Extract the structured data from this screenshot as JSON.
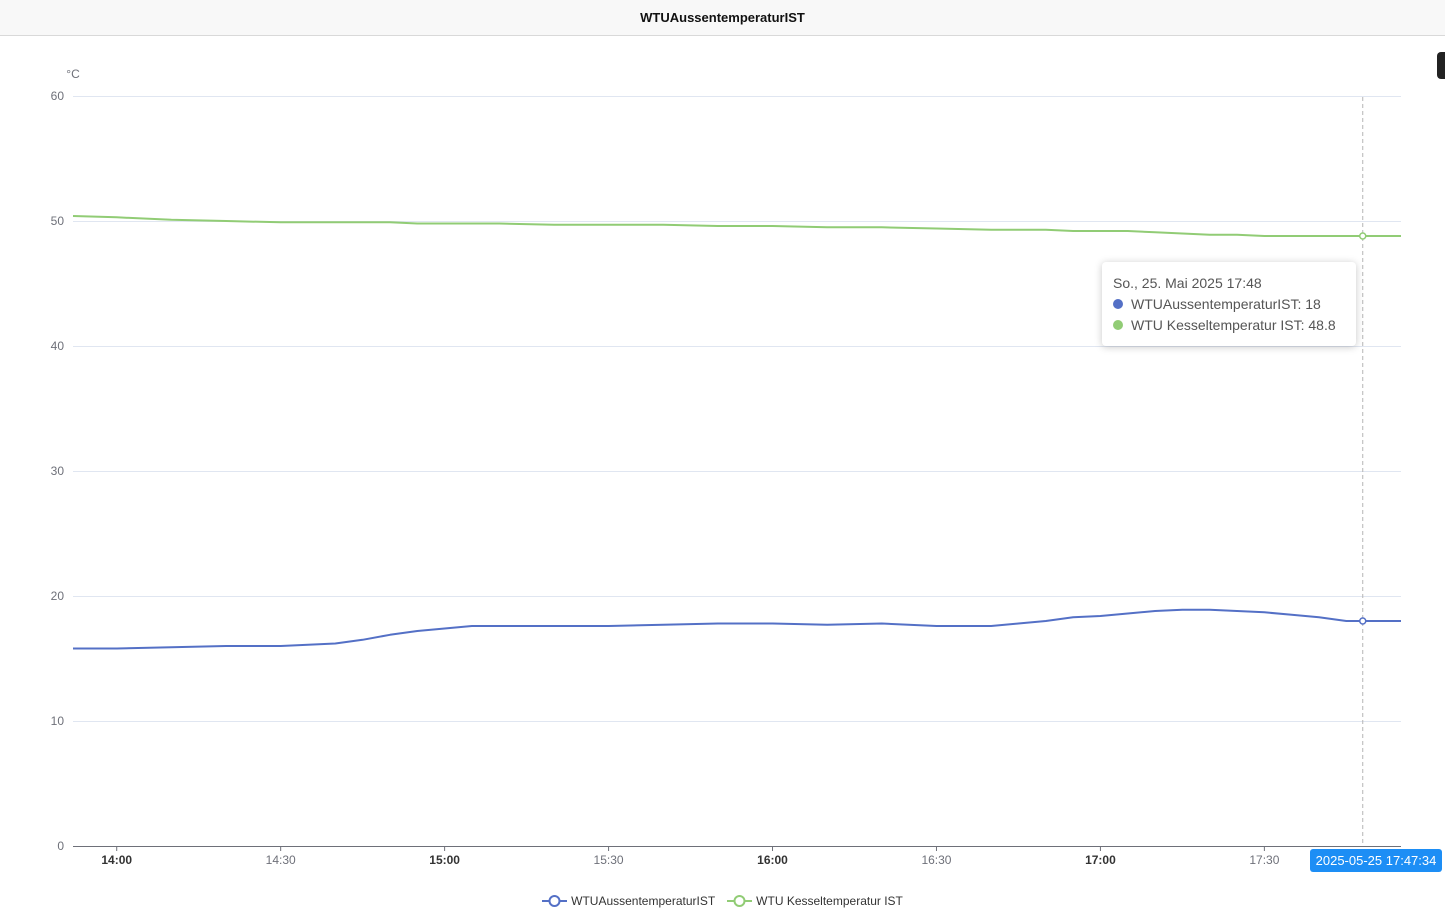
{
  "window": {
    "title": "WTUAussentemperaturIST"
  },
  "chart_data": {
    "type": "line",
    "title": "",
    "ylabel": "°C",
    "xlabel": "",
    "ylim": [
      0,
      60
    ],
    "y_ticks": [
      0,
      10,
      20,
      30,
      40,
      50,
      60
    ],
    "xlim": [
      "2025-05-25 13:52",
      "2025-05-25 17:55"
    ],
    "x_ticks": [
      {
        "label": "14:00",
        "time": "2025-05-25 14:00",
        "bold": true
      },
      {
        "label": "14:30",
        "time": "2025-05-25 14:30",
        "bold": false
      },
      {
        "label": "15:00",
        "time": "2025-05-25 15:00",
        "bold": true
      },
      {
        "label": "15:30",
        "time": "2025-05-25 15:30",
        "bold": false
      },
      {
        "label": "16:00",
        "time": "2025-05-25 16:00",
        "bold": true
      },
      {
        "label": "16:30",
        "time": "2025-05-25 16:30",
        "bold": false
      },
      {
        "label": "17:00",
        "time": "2025-05-25 17:00",
        "bold": true
      },
      {
        "label": "17:30",
        "time": "2025-05-25 17:30",
        "bold": false
      }
    ],
    "grid": true,
    "legend_position": "bottom-center",
    "x": [
      "2025-05-25 13:52",
      "2025-05-25 14:00",
      "2025-05-25 14:10",
      "2025-05-25 14:20",
      "2025-05-25 14:30",
      "2025-05-25 14:40",
      "2025-05-25 14:45",
      "2025-05-25 14:50",
      "2025-05-25 14:55",
      "2025-05-25 15:00",
      "2025-05-25 15:05",
      "2025-05-25 15:10",
      "2025-05-25 15:20",
      "2025-05-25 15:30",
      "2025-05-25 15:40",
      "2025-05-25 15:50",
      "2025-05-25 16:00",
      "2025-05-25 16:10",
      "2025-05-25 16:20",
      "2025-05-25 16:30",
      "2025-05-25 16:40",
      "2025-05-25 16:45",
      "2025-05-25 16:50",
      "2025-05-25 16:55",
      "2025-05-25 17:00",
      "2025-05-25 17:05",
      "2025-05-25 17:10",
      "2025-05-25 17:15",
      "2025-05-25 17:20",
      "2025-05-25 17:25",
      "2025-05-25 17:30",
      "2025-05-25 17:35",
      "2025-05-25 17:40",
      "2025-05-25 17:45",
      "2025-05-25 17:48",
      "2025-05-25 17:55"
    ],
    "series": [
      {
        "name": "WTUAussentemperaturIST",
        "color": "#5470c6",
        "values": [
          15.8,
          15.8,
          15.9,
          16.0,
          16.0,
          16.2,
          16.5,
          16.9,
          17.2,
          17.4,
          17.6,
          17.6,
          17.6,
          17.6,
          17.7,
          17.8,
          17.8,
          17.7,
          17.8,
          17.6,
          17.6,
          17.8,
          18.0,
          18.3,
          18.4,
          18.6,
          18.8,
          18.9,
          18.9,
          18.8,
          18.7,
          18.5,
          18.3,
          18.0,
          18.0,
          18.0
        ]
      },
      {
        "name": "WTU Kesseltemperatur IST",
        "color": "#91cc75",
        "values": [
          50.4,
          50.3,
          50.1,
          50.0,
          49.9,
          49.9,
          49.9,
          49.9,
          49.8,
          49.8,
          49.8,
          49.8,
          49.7,
          49.7,
          49.7,
          49.6,
          49.6,
          49.5,
          49.5,
          49.4,
          49.3,
          49.3,
          49.3,
          49.2,
          49.2,
          49.2,
          49.1,
          49.0,
          48.9,
          48.9,
          48.8,
          48.8,
          48.8,
          48.8,
          48.8,
          48.8
        ]
      }
    ],
    "tooltip": {
      "title": "So., 25. Mai 2025 17:48",
      "rows": [
        "WTUAussentemperaturIST: 18",
        "WTU Kesseltemperatur IST: 48.8"
      ],
      "time": "2025-05-25 17:48"
    },
    "axis_pointer": {
      "label": "2025-05-25 17:47:34"
    }
  }
}
